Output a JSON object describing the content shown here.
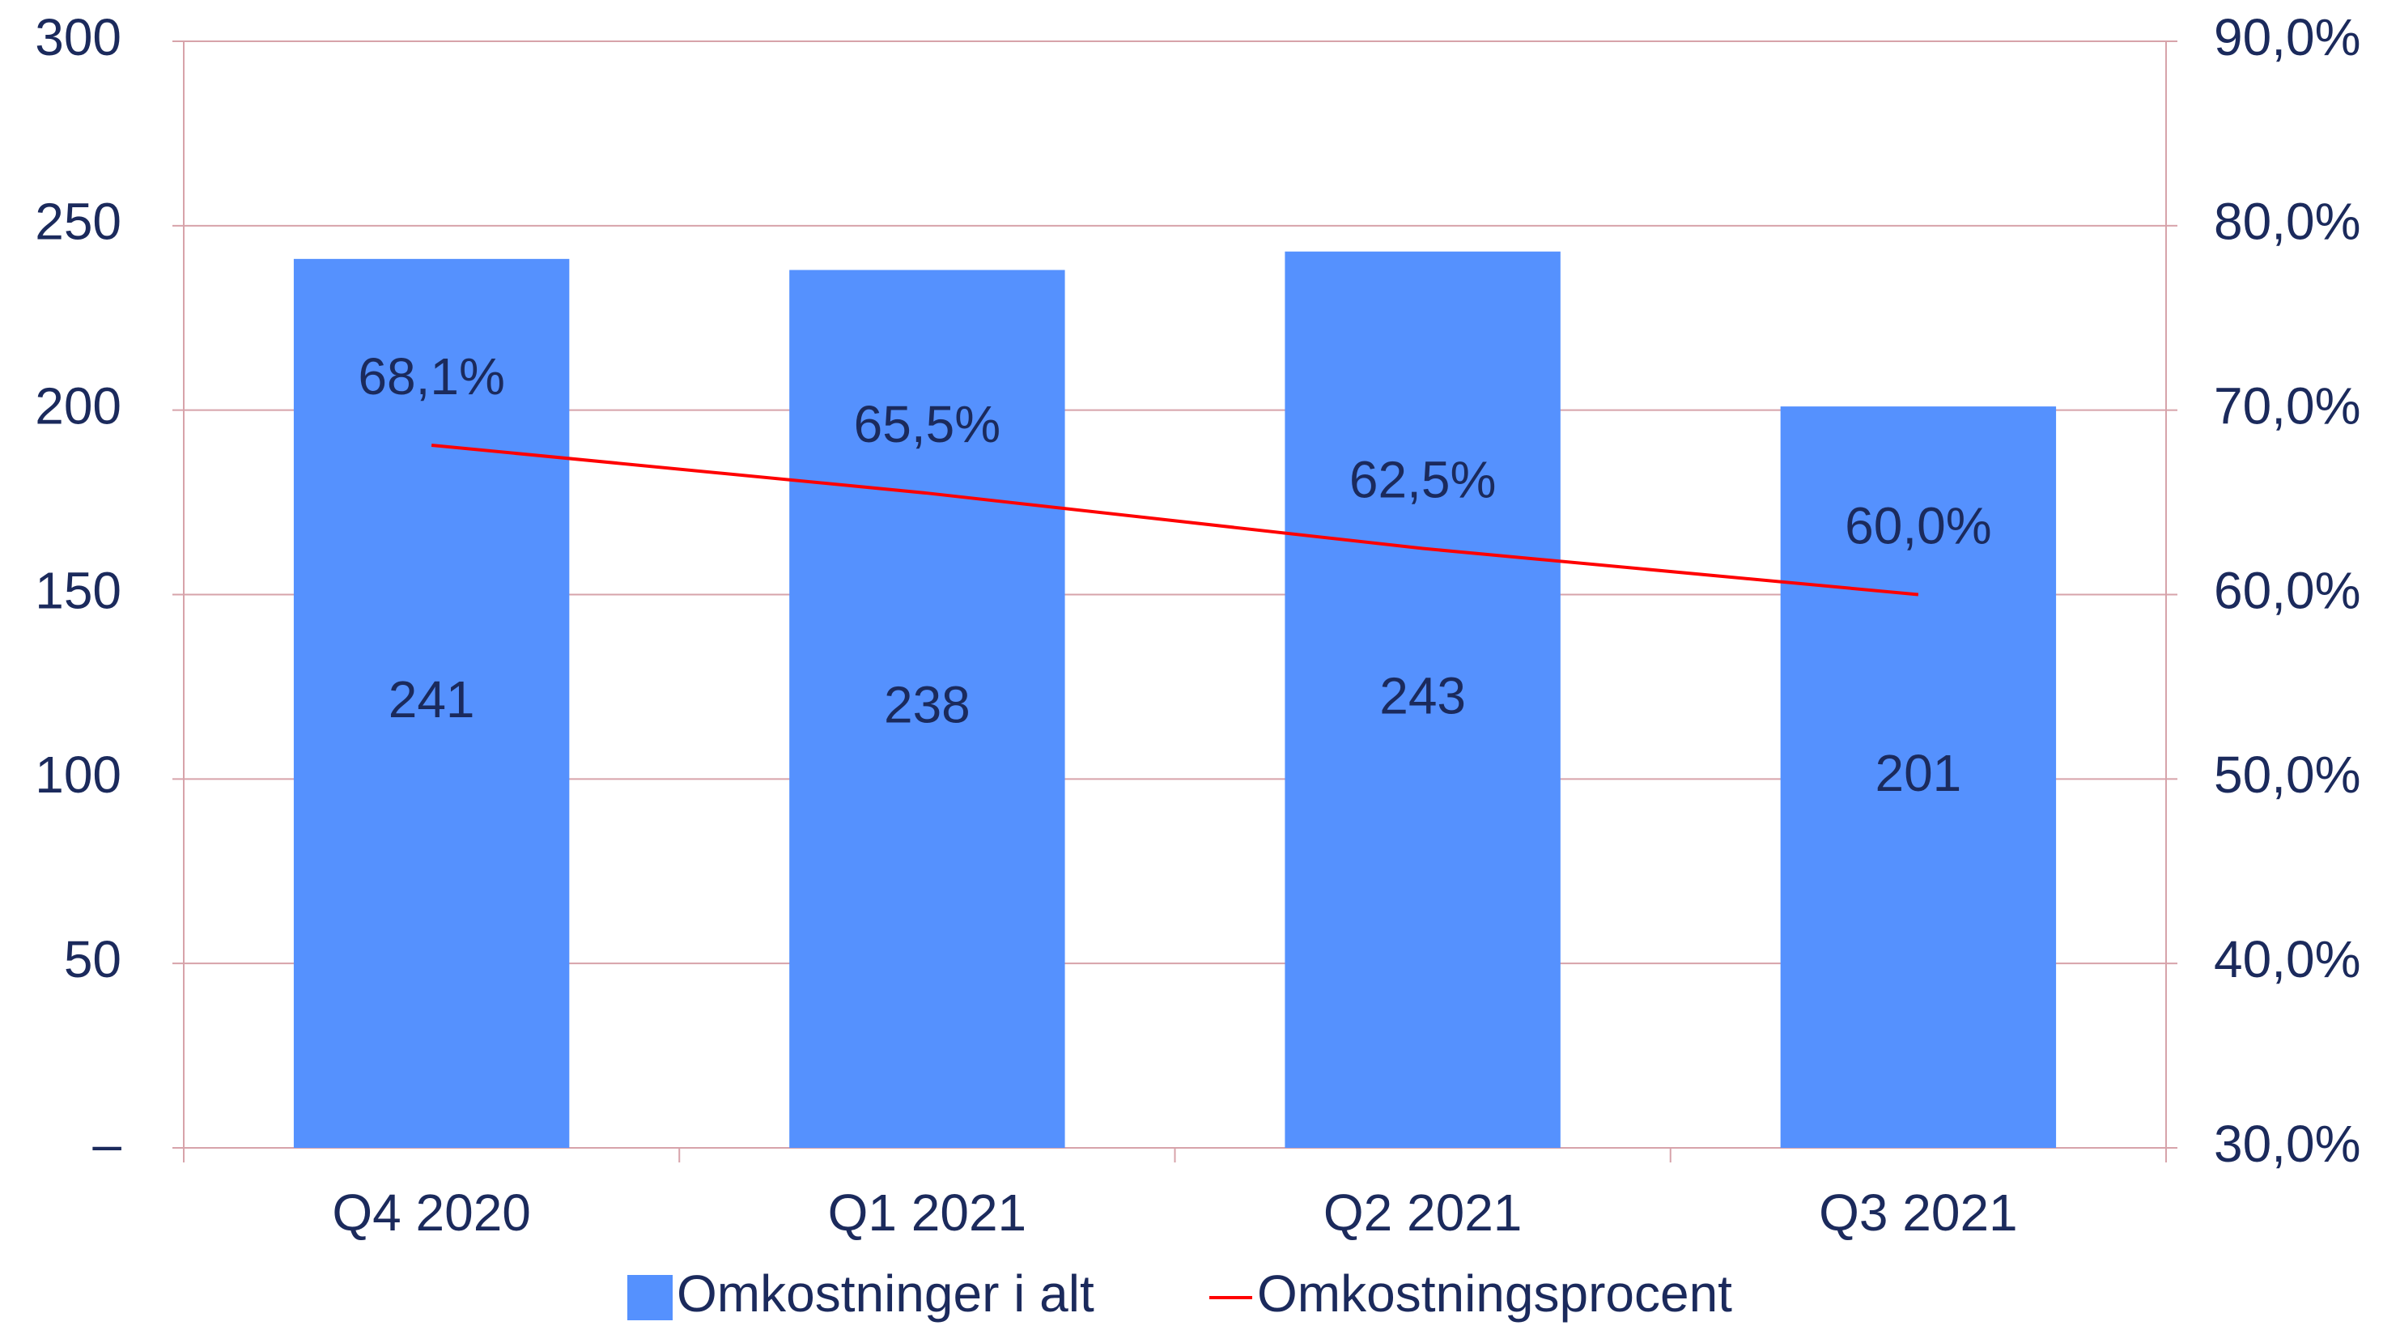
{
  "chart_data": {
    "type": "bar",
    "categories": [
      "Q4 2020",
      "Q1 2021",
      "Q2 2021",
      "Q3 2021"
    ],
    "series": [
      {
        "name": "Omkostninger i alt",
        "color": "#5591fe",
        "values": [
          241,
          238,
          243,
          201
        ]
      },
      {
        "name": "Omkostningsprocent",
        "color": "#ff0000",
        "type": "line",
        "axis": "y2",
        "values": [
          68.1,
          65.5,
          62.5,
          60.0
        ],
        "value_labels": [
          "68,1%",
          "65,5%",
          "62,5%",
          "60,0%"
        ]
      }
    ],
    "ylim": [
      0,
      300
    ],
    "yticks": [
      {
        "value": 0,
        "label": "–"
      },
      50,
      100,
      150,
      200,
      250,
      300
    ],
    "y2lim": [
      30,
      90
    ],
    "y2ticks": [
      {
        "value": 30,
        "label": "30,0%"
      },
      {
        "value": 40,
        "label": "40,0%"
      },
      {
        "value": 50,
        "label": "50,0%"
      },
      {
        "value": 60,
        "label": "60,0%"
      },
      {
        "value": 70,
        "label": "70,0%"
      },
      {
        "value": 80,
        "label": "80,0%"
      },
      {
        "value": 90,
        "label": "90,0%"
      }
    ],
    "grid": true,
    "legend": "bottom"
  }
}
